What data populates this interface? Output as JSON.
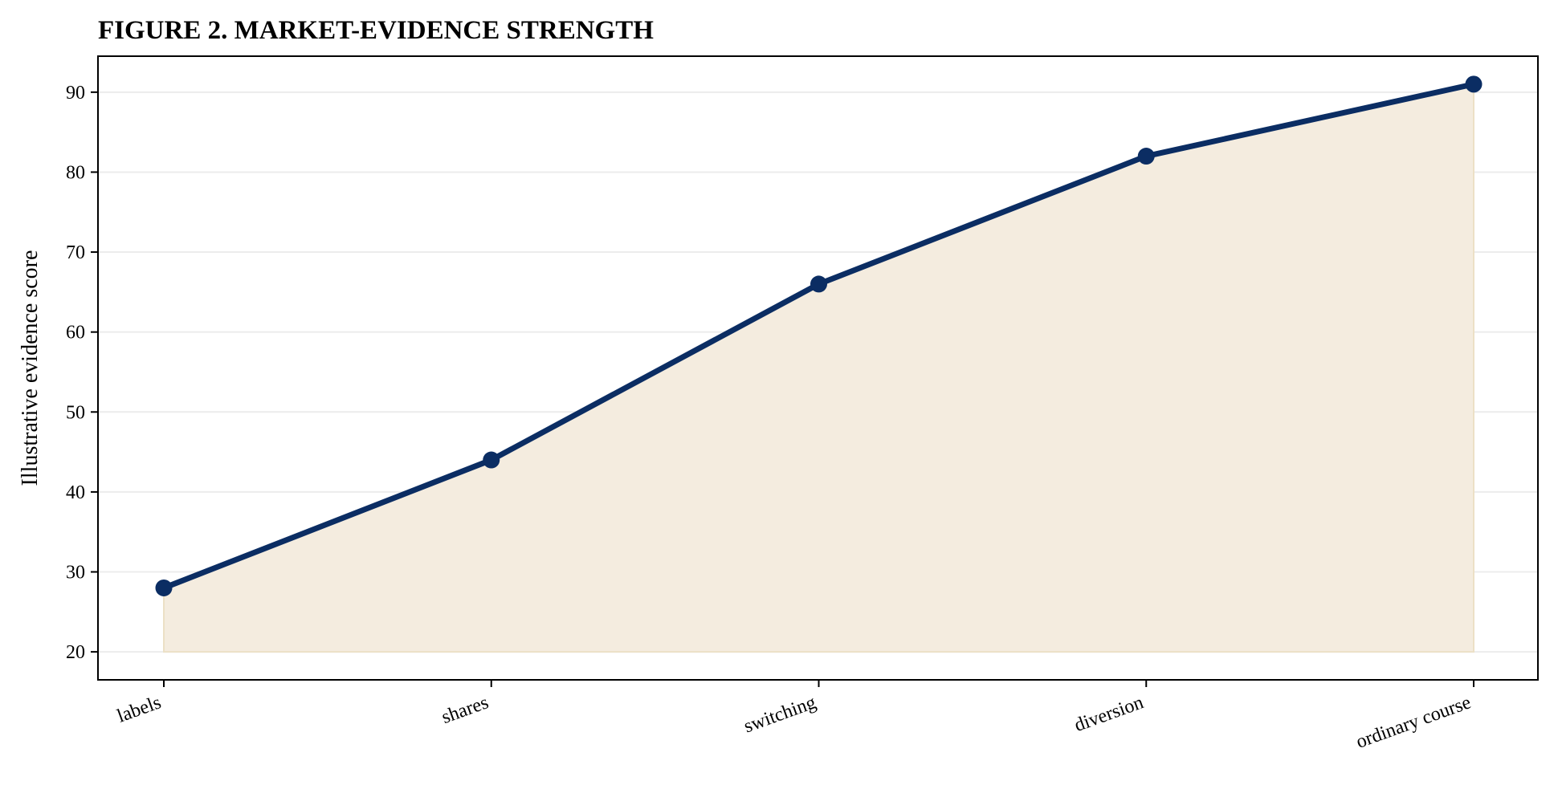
{
  "chart_data": {
    "type": "area",
    "title": "FIGURE 2. MARKET-EVIDENCE STRENGTH",
    "xlabel": "",
    "ylabel": "Illustrative evidence score",
    "categories": [
      "labels",
      "shares",
      "switching",
      "diversion",
      "ordinary course"
    ],
    "series": [
      {
        "values": [
          28,
          44,
          66,
          82,
          91
        ]
      }
    ],
    "fill_baseline": 20,
    "ylim": [
      16.5,
      94.5
    ],
    "yticks": [
      20,
      30,
      40,
      50,
      60,
      70,
      80,
      90
    ],
    "grid": "horizontal",
    "legend": "none",
    "colors": {
      "line": "#0b2d63",
      "fill": "#f4ecdf",
      "grid": "#ececec",
      "frame": "#000000"
    }
  }
}
